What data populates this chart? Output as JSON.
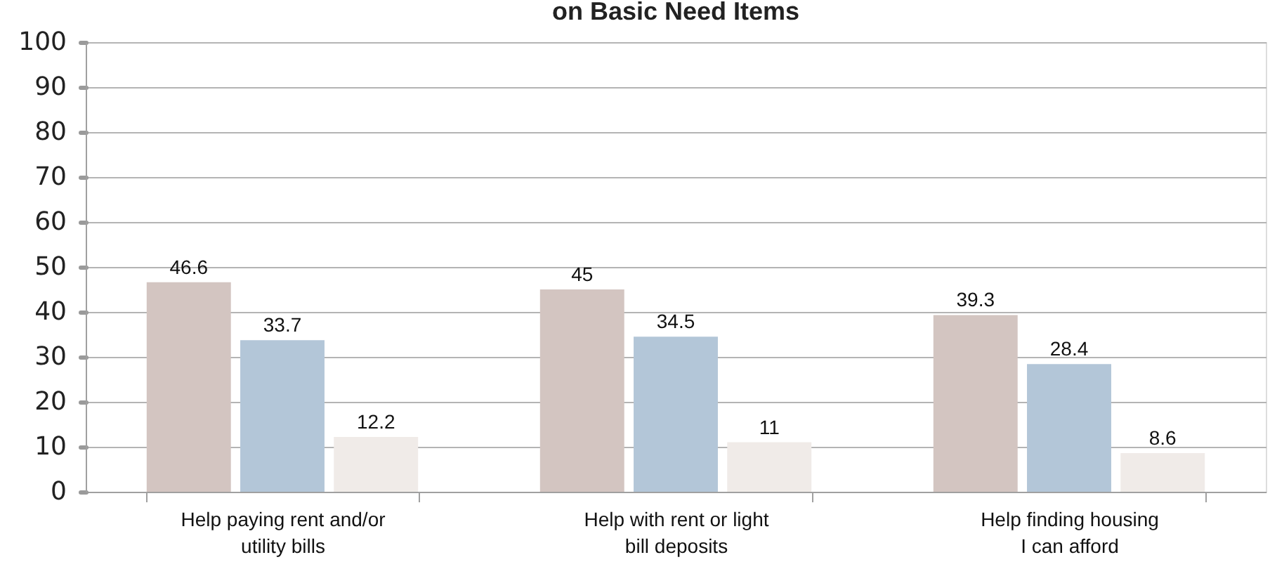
{
  "chart_data": {
    "type": "bar",
    "title": "on Basic Need Items",
    "categories": [
      "Help paying rent and/or\nutility bills",
      "Help with rent or light\nbill deposits",
      "Help finding housing\nI can afford"
    ],
    "series": [
      {
        "color": "#d3c5c1",
        "values": [
          46.6,
          45,
          39.3
        ]
      },
      {
        "color": "#b3c6d8",
        "values": [
          33.7,
          34.5,
          28.4
        ]
      },
      {
        "color": "#f0ebe8",
        "values": [
          12.2,
          11,
          8.6
        ]
      }
    ],
    "ylim": [
      0,
      100
    ],
    "yticks": [
      0,
      10,
      20,
      30,
      40,
      50,
      60,
      70,
      80,
      90,
      100
    ],
    "grid": "y",
    "data_labels": true
  }
}
